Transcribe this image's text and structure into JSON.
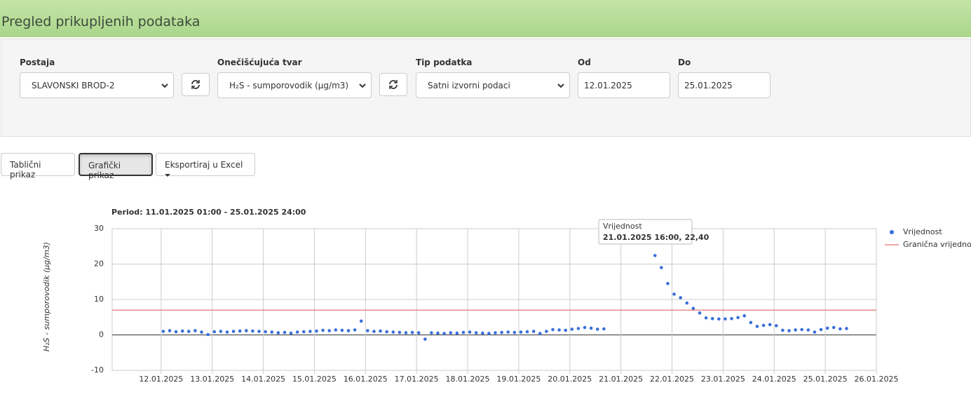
{
  "header": {
    "title": "Pregled prikupljenih podataka"
  },
  "filters": [
    {
      "label": "Postaja",
      "value": "SLAVONSKI BROD-2"
    },
    {
      "label": "Onečišćujuća tvar",
      "value": "H₂S - sumporovodik (µg/m3)"
    },
    {
      "label": "Tip podatka",
      "value": "Satni izvorni podaci"
    },
    {
      "label": "Od",
      "value": "12.01.2025"
    },
    {
      "label": "Do",
      "value": "25.01.2025"
    }
  ],
  "buttons": [
    "Tablični prikaz",
    "Grafički prikaz",
    "Eksportiraj u Excel"
  ],
  "chart_data": {
    "type": "scatter",
    "subtitle": "Period: 11.01.2025 01:00 - 25.01.2025 24:00",
    "ylabel": "H₂S - sumporovodik (µg/m3)",
    "x": [
      "12.01.2025 01:00",
      "12.01.2025 04:00",
      "12.01.2025 07:00",
      "12.01.2025 10:00",
      "12.01.2025 13:00",
      "12.01.2025 16:00",
      "12.01.2025 19:00",
      "12.01.2025 22:00",
      "13.01.2025 01:00",
      "13.01.2025 04:00",
      "13.01.2025 07:00",
      "13.01.2025 10:00",
      "13.01.2025 13:00",
      "13.01.2025 16:00",
      "13.01.2025 19:00",
      "13.01.2025 22:00",
      "14.01.2025 01:00",
      "14.01.2025 04:00",
      "14.01.2025 07:00",
      "14.01.2025 10:00",
      "14.01.2025 13:00",
      "14.01.2025 16:00",
      "14.01.2025 19:00",
      "14.01.2025 22:00",
      "15.01.2025 01:00",
      "15.01.2025 04:00",
      "15.01.2025 07:00",
      "15.01.2025 10:00",
      "15.01.2025 13:00",
      "15.01.2025 16:00",
      "15.01.2025 19:00",
      "15.01.2025 22:00",
      "16.01.2025 01:00",
      "16.01.2025 04:00",
      "16.01.2025 07:00",
      "16.01.2025 10:00",
      "16.01.2025 13:00",
      "16.01.2025 16:00",
      "16.01.2025 19:00",
      "16.01.2025 22:00",
      "17.01.2025 01:00",
      "17.01.2025 04:00",
      "17.01.2025 07:00",
      "17.01.2025 10:00",
      "17.01.2025 13:00",
      "17.01.2025 16:00",
      "17.01.2025 19:00",
      "17.01.2025 22:00",
      "18.01.2025 01:00",
      "18.01.2025 04:00",
      "18.01.2025 07:00",
      "18.01.2025 10:00",
      "18.01.2025 13:00",
      "18.01.2025 16:00",
      "18.01.2025 19:00",
      "18.01.2025 22:00",
      "19.01.2025 01:00",
      "19.01.2025 04:00",
      "19.01.2025 07:00",
      "19.01.2025 10:00",
      "19.01.2025 13:00",
      "19.01.2025 16:00",
      "19.01.2025 19:00",
      "19.01.2025 22:00",
      "20.01.2025 01:00",
      "20.01.2025 04:00",
      "20.01.2025 07:00",
      "20.01.2025 10:00",
      "20.01.2025 13:00",
      "20.01.2025 16:00",
      "21.01.2025 16:00",
      "21.01.2025 19:00",
      "21.01.2025 22:00",
      "22.01.2025 01:00",
      "22.01.2025 04:00",
      "22.01.2025 07:00",
      "22.01.2025 10:00",
      "22.01.2025 13:00",
      "22.01.2025 16:00",
      "22.01.2025 19:00",
      "22.01.2025 22:00",
      "23.01.2025 01:00",
      "23.01.2025 04:00",
      "23.01.2025 07:00",
      "23.01.2025 10:00",
      "23.01.2025 13:00",
      "23.01.2025 16:00",
      "23.01.2025 19:00",
      "23.01.2025 22:00",
      "24.01.2025 01:00",
      "24.01.2025 04:00",
      "24.01.2025 07:00",
      "24.01.2025 10:00",
      "24.01.2025 13:00",
      "24.01.2025 16:00",
      "24.01.2025 19:00",
      "24.01.2025 22:00",
      "25.01.2025 01:00",
      "25.01.2025 04:00",
      "25.01.2025 07:00",
      "25.01.2025 10:00"
    ],
    "series": [
      {
        "name": "Vrijednost",
        "color": "#3a6fd8",
        "values": [
          1.0,
          1.2,
          0.9,
          1.1,
          1.0,
          1.2,
          0.8,
          0.1,
          0.9,
          1.0,
          0.8,
          1.0,
          1.1,
          1.2,
          1.1,
          1.0,
          0.9,
          0.8,
          0.6,
          0.7,
          0.5,
          0.8,
          0.9,
          1.0,
          1.1,
          1.3,
          1.2,
          1.4,
          1.3,
          1.2,
          1.4,
          3.9,
          1.2,
          1.0,
          1.1,
          0.9,
          0.8,
          0.7,
          0.6,
          0.7,
          0.6,
          -1.2,
          0.6,
          0.5,
          0.4,
          0.6,
          0.5,
          0.7,
          0.8,
          0.6,
          0.5,
          0.4,
          0.6,
          0.7,
          0.8,
          0.7,
          0.8,
          0.9,
          1.0,
          0.4,
          1.0,
          1.5,
          1.4,
          1.3,
          1.6,
          1.8,
          2.1,
          1.9,
          1.6,
          1.7,
          22.4,
          19.0,
          14.5,
          11.5,
          10.5,
          9.0,
          7.5,
          6.2,
          4.8,
          4.6,
          4.5,
          4.5,
          4.6,
          4.9,
          5.4,
          3.5,
          2.4,
          2.7,
          2.9,
          2.6,
          1.3,
          1.2,
          1.4,
          1.5,
          1.4,
          0.8,
          1.5,
          1.9,
          2.1,
          1.7,
          1.8
        ]
      }
    ],
    "threshold": {
      "name": "Granična vrijednost",
      "value": 7,
      "color": "#d9534f"
    },
    "tooltip": {
      "title": "Vrijednost",
      "text": "21.01.2025 16:00, 22,40"
    },
    "xlim": [
      "11.01.2025 01:00",
      "26.01.2025 00:00"
    ],
    "xticks": [
      "12.01.2025",
      "13.01.2025",
      "14.01.2025",
      "15.01.2025",
      "16.01.2025",
      "17.01.2025",
      "18.01.2025",
      "19.01.2025",
      "20.01.2025",
      "21.01.2025",
      "22.01.2025",
      "23.01.2025",
      "24.01.2025",
      "25.01.2025",
      "26.01.2025"
    ],
    "ylim": [
      -10,
      30
    ],
    "yticks": [
      -10,
      0,
      10,
      20,
      30
    ],
    "grid": true,
    "legend": "right"
  }
}
